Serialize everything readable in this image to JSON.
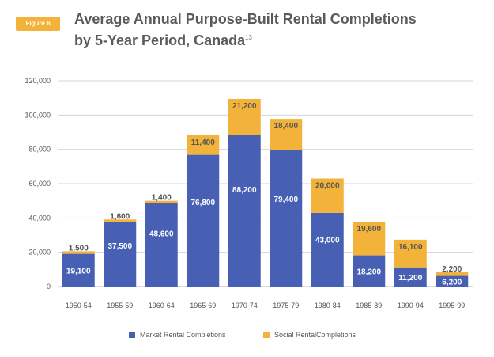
{
  "figure_label": "Figure 6",
  "title_text": "Average Annual Purpose-Built Rental Completions by 5-Year Period, Canada",
  "title_sup": "13",
  "colors": {
    "market": "#4860b4",
    "social": "#f3b23a",
    "grid": "#d4d4d4",
    "axis_text": "#555555"
  },
  "chart_data": {
    "type": "bar",
    "stacked": true,
    "title": "Average Annual Purpose-Built Rental Completions by 5-Year Period, Canada",
    "categories": [
      "1950-54",
      "1955-59",
      "1960-64",
      "1965-69",
      "1970-74",
      "1975-79",
      "1980-84",
      "1985-89",
      "1990-94",
      "1995-99"
    ],
    "series": [
      {
        "name": "Market Rental Completions",
        "values": [
          19100,
          37500,
          48600,
          76800,
          88200,
          79400,
          43000,
          18200,
          11200,
          6200
        ],
        "labels": [
          "19,100",
          "37,500",
          "48,600",
          "76,800",
          "88,200",
          "79,400",
          "43,000",
          "18,200",
          "11,200",
          "6,200"
        ]
      },
      {
        "name": "Social RentalCompletions",
        "values": [
          1500,
          1600,
          1400,
          11400,
          21200,
          18400,
          20000,
          19600,
          16100,
          2200
        ],
        "labels": [
          "1,500",
          "1,600",
          "1,400",
          "11,400",
          "21,200",
          "18,400",
          "20,000",
          "19,600",
          "16,100",
          "2,200"
        ]
      }
    ],
    "ylim": [
      0,
      120000
    ],
    "yticks": [
      0,
      20000,
      40000,
      60000,
      80000,
      100000,
      120000
    ],
    "ytick_labels": [
      "0",
      "20,000",
      "40,000",
      "60,000",
      "80,000",
      "100,000",
      "120,000"
    ],
    "grid": true,
    "legend": "bottom"
  }
}
